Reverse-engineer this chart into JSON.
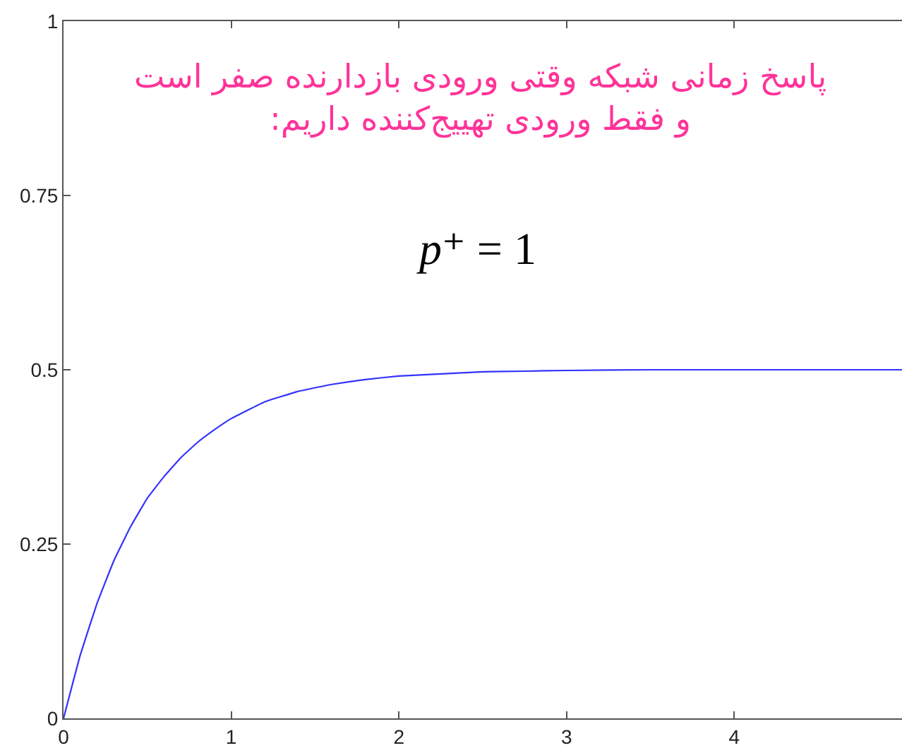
{
  "chart_data": {
    "type": "line",
    "annotations": [
      "پاسخ زمانی شبکه وقتی ورودی بازدارنده صفر است\nو فقط ورودی تهییج‌کننده داریم:",
      "p⁺ = 1"
    ],
    "x": [
      0,
      0.1,
      0.2,
      0.3,
      0.4,
      0.5,
      0.6,
      0.7,
      0.8,
      0.9,
      1.0,
      1.2,
      1.4,
      1.6,
      1.8,
      2.0,
      2.25,
      2.5,
      2.75,
      3.0,
      3.5,
      4.0,
      4.5,
      5.0
    ],
    "series": [
      {
        "color": "#3333ff",
        "values": [
          0,
          0.091,
          0.165,
          0.226,
          0.275,
          0.316,
          0.347,
          0.374,
          0.396,
          0.414,
          0.43,
          0.454,
          0.469,
          0.479,
          0.486,
          0.491,
          0.494,
          0.497,
          0.498,
          0.499,
          0.5,
          0.5,
          0.5,
          0.5
        ]
      }
    ],
    "xlim": [
      0,
      5
    ],
    "xticks": [
      0,
      1,
      2,
      3,
      4
    ],
    "ylim": [
      0,
      1
    ],
    "yticks": [
      0,
      0.25,
      0.5,
      0.75,
      1
    ]
  }
}
